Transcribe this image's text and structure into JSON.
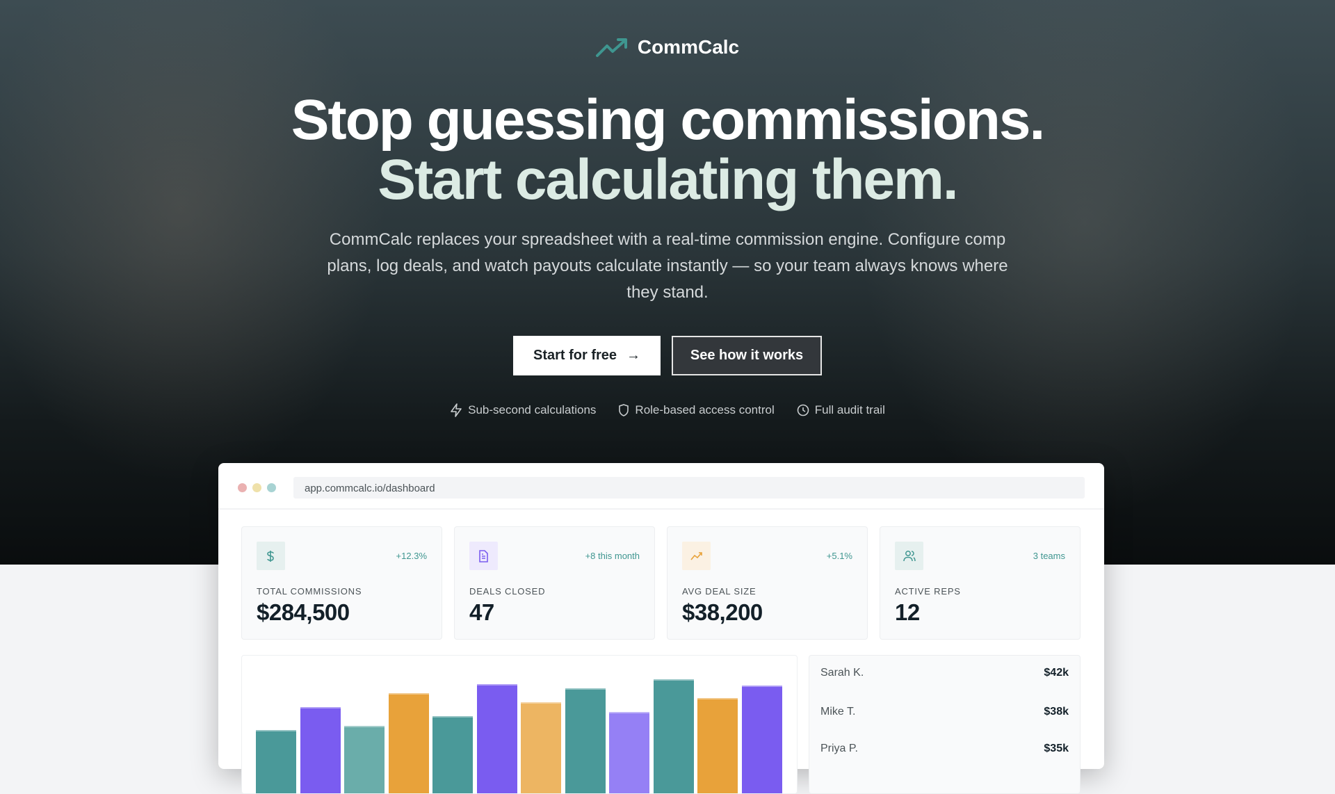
{
  "brand": {
    "name": "CommCalc",
    "color": "#3f9690"
  },
  "hero": {
    "headline_line1": "Stop guessing commissions.",
    "headline_line2": "Start calculating them.",
    "subtitle": "CommCalc replaces your spreadsheet with a real-time commission engine. Configure comp plans, log deals, and watch payouts calculate instantly — so your team always knows where they stand.",
    "primary_button": "Start for free",
    "secondary_button": "See how it works",
    "features": [
      {
        "icon": "lightning-icon",
        "label": "Sub-second calculations"
      },
      {
        "icon": "shield-icon",
        "label": "Role-based access control"
      },
      {
        "icon": "clock-icon",
        "label": "Full audit trail"
      }
    ]
  },
  "dashboard": {
    "url": "app.commcalc.io/dashboard",
    "stats": [
      {
        "icon": "dollar-icon",
        "label": "TOTAL COMMISSIONS",
        "value": "$284,500",
        "delta": "+12.3%",
        "icon_color": "#3f9690",
        "icon_bg": "#e6f0ef"
      },
      {
        "icon": "document-icon",
        "label": "DEALS CLOSED",
        "value": "47",
        "delta": "+8 this month",
        "icon_color": "#7a5cf0",
        "icon_bg": "#eeeafd"
      },
      {
        "icon": "trending-up-icon",
        "label": "AVG DEAL SIZE",
        "value": "$38,200",
        "delta": "+5.1%",
        "icon_color": "#e8a23a",
        "icon_bg": "#fbf1e3"
      },
      {
        "icon": "users-icon",
        "label": "ACTIVE REPS",
        "value": "12",
        "delta": "3 teams",
        "icon_color": "#3f9690",
        "icon_bg": "#e6f0ef"
      }
    ],
    "leaderboard": [
      {
        "name": "Sarah K.",
        "amount": "$42k"
      },
      {
        "name": "Mike T.",
        "amount": "$38k"
      },
      {
        "name": "Priya P.",
        "amount": "$35k"
      }
    ]
  },
  "chart_data": {
    "type": "bar",
    "values": [
      53,
      78,
      58,
      93,
      68,
      103,
      83,
      98,
      73,
      108,
      88,
      101
    ],
    "colors": [
      "#4a9999",
      "#7a5cf0",
      "#6aadaa",
      "#e8a23a",
      "#4a9999",
      "#7a5cf0",
      "#edb562",
      "#4a9999",
      "#9580f5",
      "#4a9999",
      "#e8a23a",
      "#7a5cf0"
    ]
  }
}
